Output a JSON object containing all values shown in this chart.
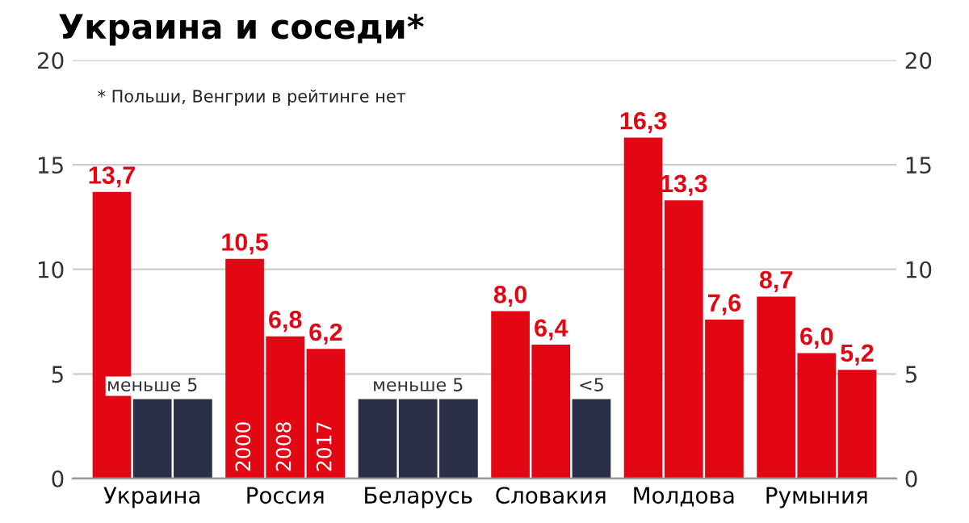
{
  "chart_data": {
    "type": "bar",
    "title": "Украина и соседи*",
    "categories": [
      "Украина",
      "Россия",
      "Беларусь",
      "Словакия",
      "Молдова",
      "Румыния"
    ],
    "series": [
      {
        "name": "2000",
        "color": "#e30613",
        "colors": [
          "#e30613",
          "#e30613",
          "#2b2f48",
          "#e30613",
          "#e30613",
          "#e30613"
        ],
        "values": [
          13.7,
          10.5,
          3.8,
          8.0,
          16.3,
          8.7
        ],
        "value_labels": [
          "13,7",
          "10,5",
          null,
          "8,0",
          "16,3",
          "8,7"
        ]
      },
      {
        "name": "2008",
        "color": "#e30613",
        "colors": [
          "#2b2f48",
          "#e30613",
          "#2b2f48",
          "#e30613",
          "#e30613",
          "#e30613"
        ],
        "values": [
          3.8,
          6.8,
          3.8,
          6.4,
          13.3,
          6.0
        ],
        "value_labels": [
          null,
          "6,8",
          null,
          "6,4",
          "13,3",
          "6,0"
        ]
      },
      {
        "name": "2017",
        "color": "#e30613",
        "colors": [
          "#2b2f48",
          "#e30613",
          "#2b2f48",
          "#2b2f48",
          "#e30613",
          "#e30613"
        ],
        "values": [
          3.8,
          6.2,
          3.8,
          3.8,
          7.6,
          5.2
        ],
        "value_labels": [
          null,
          "6,2",
          null,
          "<5",
          "7,6",
          "5,2"
        ]
      }
    ],
    "annotations": [
      "* Польши, Венгрии в рейтинге нет",
      {
        "text": "меньше 5",
        "x": "Украина",
        "y": 3.8
      },
      {
        "text": "меньше 5",
        "x": "Беларусь",
        "y": 3.8
      }
    ],
    "ylim": [
      0,
      20
    ],
    "yticks": [
      0,
      5,
      10,
      15,
      20
    ],
    "y2lim": [
      0,
      20
    ],
    "y2ticks": [
      0,
      5,
      10,
      15,
      20
    ],
    "grid": "y",
    "legend": false
  }
}
